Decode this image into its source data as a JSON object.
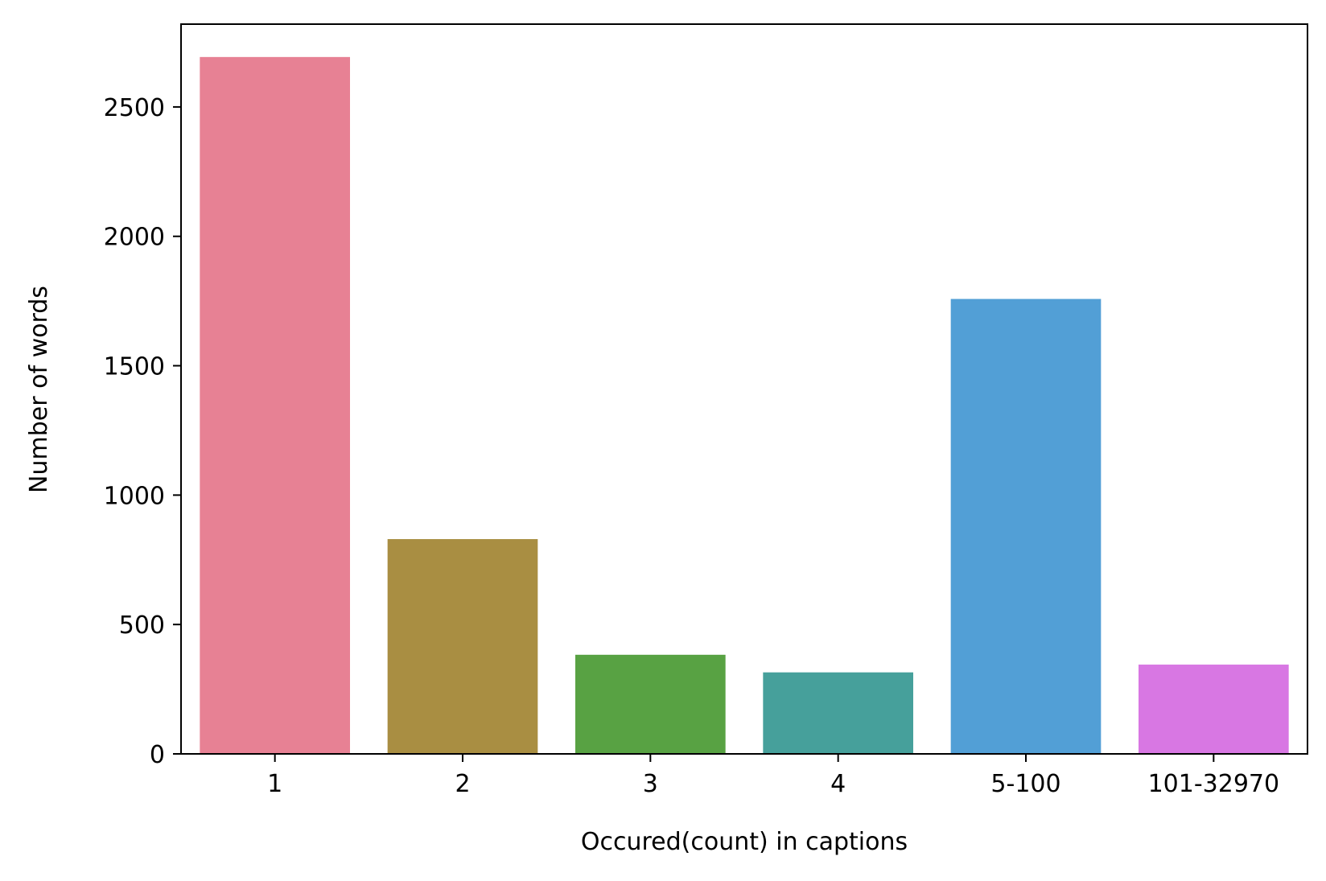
{
  "chart_data": {
    "type": "bar",
    "title": "",
    "xlabel": "Occured(count) in captions",
    "ylabel": "Number of words",
    "categories": [
      "1",
      "2",
      "3",
      "4",
      "5-100",
      "101-32970"
    ],
    "values": [
      2693,
      830,
      383,
      315,
      1758,
      345
    ],
    "colors": [
      "#e78194",
      "#a98e42",
      "#58a243",
      "#46a09b",
      "#529fd6",
      "#d877e3"
    ],
    "ylim": [
      0,
      2820
    ],
    "yticks": [
      0,
      500,
      1000,
      1500,
      2000,
      2500
    ],
    "grid": false,
    "legend": "none"
  }
}
